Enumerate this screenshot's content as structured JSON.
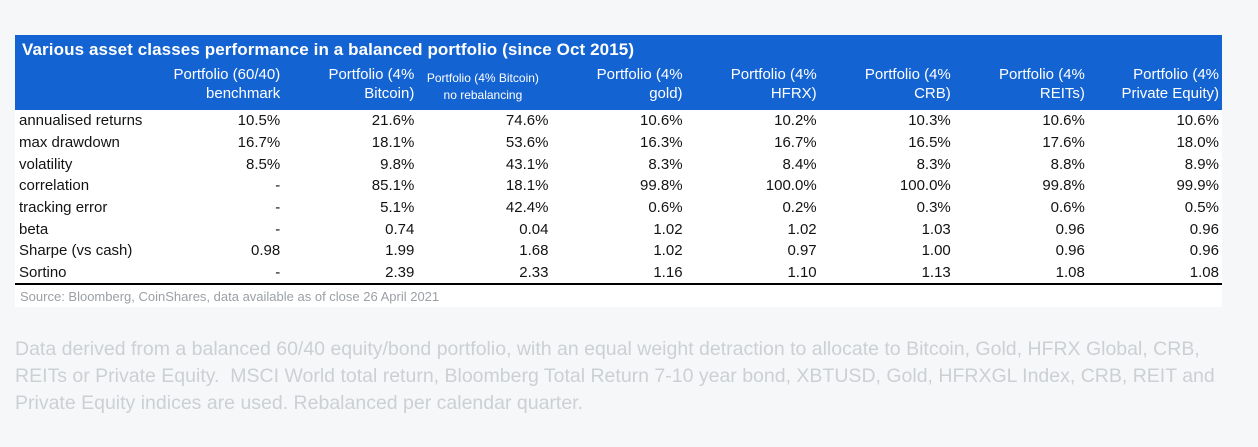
{
  "style": {
    "header_blue": "#1363d2",
    "page_bg": "#f6f7f9",
    "body_text": "#131313",
    "source_gray": "#9ba0a5",
    "footnote_gray": "#ccd0d4"
  },
  "chart_data": {
    "type": "table",
    "title": "Various asset classes performance in a balanced portfolio (since Oct 2015)",
    "columns": [
      {
        "line1": "Portfolio (60/40)",
        "line2": "benchmark",
        "small": false
      },
      {
        "line1": "Portfolio (4%",
        "line2": "Bitcoin)",
        "small": false
      },
      {
        "line1": "Portfolio (4% Bitcoin)",
        "line2": "no rebalancing",
        "small": true
      },
      {
        "line1": "Portfolio (4%",
        "line2": "gold)",
        "small": false
      },
      {
        "line1": "Portfolio (4%",
        "line2": "HFRX)",
        "small": false
      },
      {
        "line1": "Portfolio (4%",
        "line2": "CRB)",
        "small": false
      },
      {
        "line1": "Portfolio (4%",
        "line2": "REITs)",
        "small": false
      },
      {
        "line1": "Portfolio (4%",
        "line2": "Private Equity)",
        "small": false
      }
    ],
    "rows": [
      {
        "label": "annualised returns",
        "values": [
          "10.5%",
          "21.6%",
          "74.6%",
          "10.6%",
          "10.2%",
          "10.3%",
          "10.6%",
          "10.6%"
        ]
      },
      {
        "label": "max drawdown",
        "values": [
          "16.7%",
          "18.1%",
          "53.6%",
          "16.3%",
          "16.7%",
          "16.5%",
          "17.6%",
          "18.0%"
        ]
      },
      {
        "label": "volatility",
        "values": [
          "8.5%",
          "9.8%",
          "43.1%",
          "8.3%",
          "8.4%",
          "8.3%",
          "8.8%",
          "8.9%"
        ]
      },
      {
        "label": "correlation",
        "values": [
          "-",
          "85.1%",
          "18.1%",
          "99.8%",
          "100.0%",
          "100.0%",
          "99.8%",
          "99.9%"
        ]
      },
      {
        "label": "tracking error",
        "values": [
          "-",
          "5.1%",
          "42.4%",
          "0.6%",
          "0.2%",
          "0.3%",
          "0.6%",
          "0.5%"
        ]
      },
      {
        "label": "beta",
        "values": [
          "-",
          "0.74",
          "0.04",
          "1.02",
          "1.02",
          "1.03",
          "0.96",
          "0.96"
        ]
      },
      {
        "label": "Sharpe (vs cash)",
        "values": [
          "0.98",
          "1.99",
          "1.68",
          "1.02",
          "0.97",
          "1.00",
          "0.96",
          "0.96"
        ]
      },
      {
        "label": "Sortino",
        "values": [
          "-",
          "2.39",
          "2.33",
          "1.16",
          "1.10",
          "1.13",
          "1.08",
          "1.08"
        ]
      }
    ],
    "source": "Source: Bloomberg, CoinShares, data available as of close 26 April 2021",
    "footnote": "Data derived from a balanced 60/40 equity/bond portfolio, with an equal weight detraction to allocate to Bitcoin, Gold, HFRX Global, CRB, REITs or Private Equity.  MSCI World total return, Bloomberg Total Return 7-10 year bond, XBTUSD, Gold, HFRXGL Index, CRB, REIT and Private Equity indices are used. Rebalanced per calendar quarter."
  }
}
